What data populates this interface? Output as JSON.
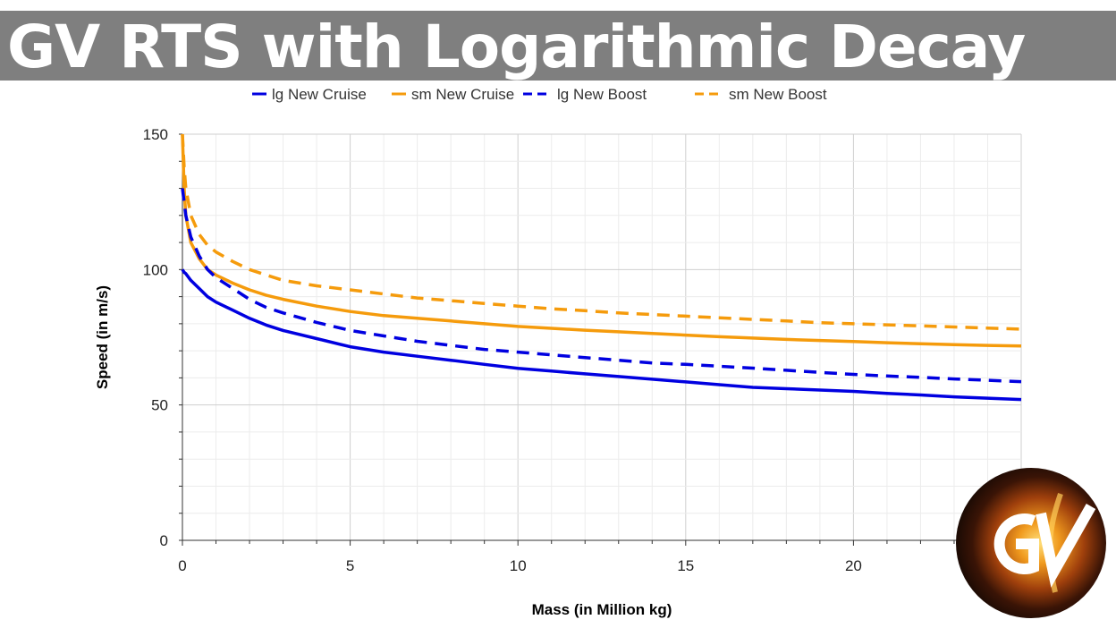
{
  "header": {
    "title": "GV RTS with Logarithmic Decay"
  },
  "logo": {
    "letters": "GV"
  },
  "chart_data": {
    "type": "line",
    "title": "",
    "xlabel": "Mass (in Million kg)",
    "ylabel": "Speed (in m/s)",
    "xlim": [
      0,
      25
    ],
    "ylim": [
      0,
      150
    ],
    "xticks": [
      0,
      5,
      10,
      15,
      20
    ],
    "yticks": [
      0,
      50,
      100,
      150
    ],
    "grid": true,
    "legend": "top",
    "x": [
      0,
      0.05,
      0.1,
      0.25,
      0.5,
      0.75,
      1,
      1.5,
      2,
      2.5,
      3,
      4,
      5,
      6,
      7,
      8,
      9,
      10,
      11,
      12,
      13,
      14,
      15,
      16,
      17,
      18,
      19,
      20,
      21,
      22,
      23,
      24,
      25
    ],
    "series": [
      {
        "name": "lg New Cruise",
        "color": "#0000e0",
        "dash": false,
        "values": [
          100,
          99,
          98.5,
          96,
          93,
          90,
          88,
          85,
          82,
          79.5,
          77.5,
          74.5,
          71.5,
          69.5,
          68,
          66.5,
          65,
          63.5,
          62.5,
          61.5,
          60.5,
          59.5,
          58.5,
          57.5,
          56.5,
          56,
          55.5,
          55,
          54.3,
          53.7,
          53,
          52.5,
          52
        ]
      },
      {
        "name": "sm New Cruise",
        "color": "#f59b0c",
        "dash": false,
        "values": [
          150,
          130,
          120,
          110,
          104,
          100,
          98,
          95,
          92.5,
          90.5,
          89,
          86.5,
          84.5,
          83,
          82,
          81,
          80,
          79,
          78.3,
          77.6,
          77,
          76.4,
          75.8,
          75.2,
          74.7,
          74.2,
          73.8,
          73.4,
          73,
          72.6,
          72.3,
          72,
          71.8
        ]
      },
      {
        "name": "lg New Boost",
        "color": "#0000e0",
        "dash": true,
        "values": [
          130,
          125,
          120,
          112,
          105,
          100,
          97,
          93,
          89,
          86,
          84,
          80.5,
          77.5,
          75.5,
          73.5,
          72,
          70.5,
          69.5,
          68.5,
          67.5,
          66.5,
          65.5,
          65,
          64.3,
          63.6,
          62.8,
          62,
          61.3,
          60.7,
          60.2,
          59.6,
          59.1,
          58.6
        ]
      },
      {
        "name": "sm New Boost",
        "color": "#f59b0c",
        "dash": true,
        "values": [
          150,
          138,
          130,
          120,
          113,
          109,
          106.5,
          103,
          100,
          98,
          96,
          94,
          92.5,
          91,
          89.5,
          88.5,
          87.5,
          86.5,
          85.5,
          84.8,
          84,
          83.4,
          82.8,
          82.2,
          81.6,
          81,
          80.4,
          80,
          79.6,
          79.2,
          78.8,
          78.4,
          78
        ]
      }
    ]
  }
}
